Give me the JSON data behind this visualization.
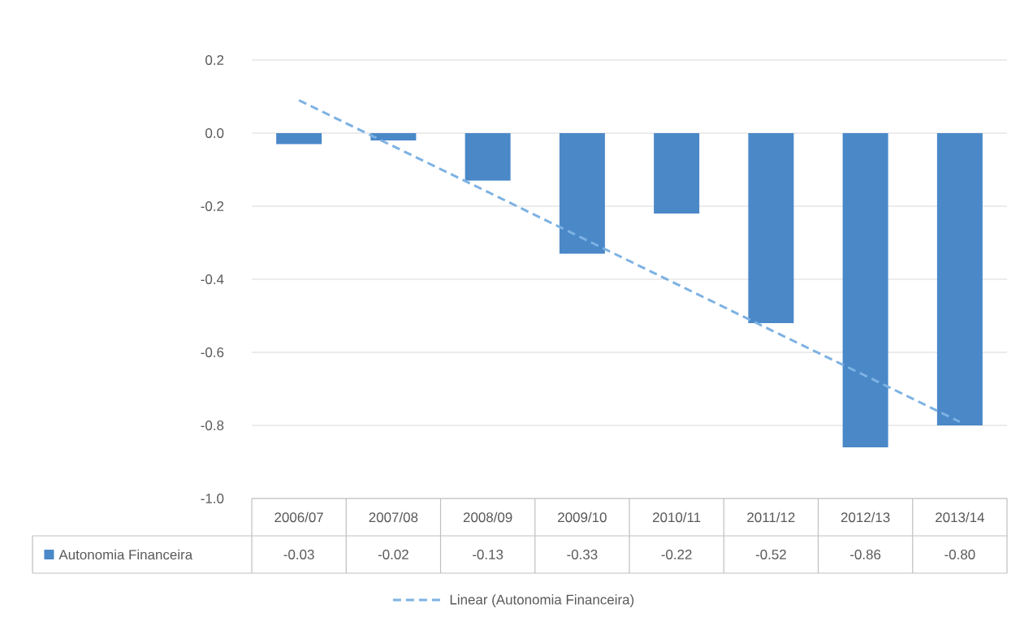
{
  "chart_data": {
    "type": "bar",
    "categories": [
      "2006/07",
      "2007/08",
      "2008/09",
      "2009/10",
      "2010/11",
      "2011/12",
      "2012/13",
      "2013/14"
    ],
    "series": [
      {
        "name": "Autonomia Financeira",
        "color": "#4a88c8",
        "values": [
          -0.03,
          -0.02,
          -0.13,
          -0.33,
          -0.22,
          -0.52,
          -0.86,
          -0.8
        ],
        "value_labels": [
          "-0.03",
          "-0.02",
          "-0.13",
          "-0.33",
          "-0.22",
          "-0.52",
          "-0.86",
          "-0.80"
        ]
      },
      {
        "name": "Linear (Autonomia Financeira)",
        "type": "line",
        "line_style": "dashed",
        "color": "#7db2e3",
        "values": [
          0.09,
          -0.036,
          -0.161,
          -0.287,
          -0.413,
          -0.539,
          -0.664,
          -0.79
        ]
      }
    ],
    "ylim": [
      -1.0,
      0.2
    ],
    "yticks": [
      {
        "value": -1.0,
        "label": "-1.0"
      },
      {
        "value": -0.8,
        "label": "-0.8"
      },
      {
        "value": -0.6,
        "label": "-0.6"
      },
      {
        "value": -0.4,
        "label": "-0.4"
      },
      {
        "value": -0.2,
        "label": "-0.2"
      },
      {
        "value": 0.0,
        "label": "0.0"
      },
      0.2
    ],
    "grid": "y",
    "legend": "bottom"
  }
}
